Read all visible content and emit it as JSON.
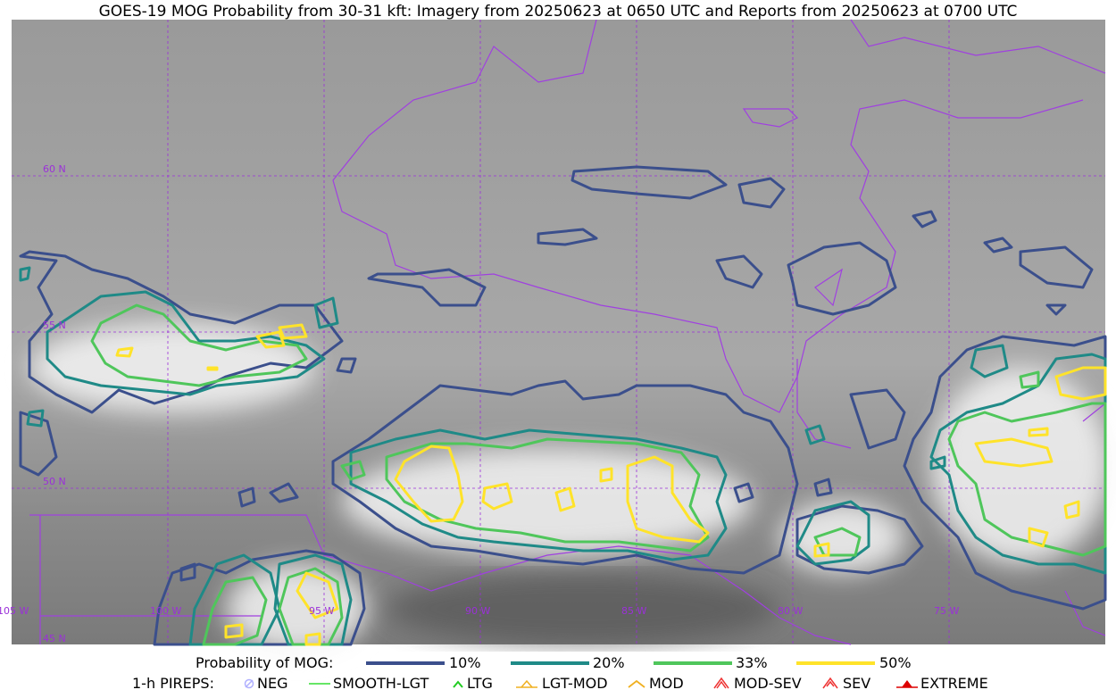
{
  "title": "GOES-19 MOG Probability from 30-31 kft: Imagery from 20250623 at 0650 UTC and Reports from 20250623 at 0700 UTC",
  "map": {
    "lat_labels": [
      "60 N",
      "55 N",
      "50 N",
      "45 N"
    ],
    "lon_labels": [
      "105 W",
      "100 W",
      "95 W",
      "90 W",
      "85 W",
      "80 W",
      "75 W"
    ],
    "grid_color": "#9b30d9",
    "border_color": "#a040e0"
  },
  "legend": {
    "prob_title": "Probability of MOG:",
    "levels": [
      {
        "label": "10%",
        "color": "#3b4f8c"
      },
      {
        "label": "20%",
        "color": "#1f8a87"
      },
      {
        "label": "33%",
        "color": "#4fc65b"
      },
      {
        "label": "50%",
        "color": "#ffe32a"
      }
    ],
    "pirep_title": "1-h PIREPS:",
    "pireps": [
      {
        "label": "NEG",
        "icon": "neg-icon",
        "color": "#b0b0ff"
      },
      {
        "label": "SMOOTH-LGT",
        "icon": "smooth-lgt-icon",
        "color": "#33dd33"
      },
      {
        "label": "LTG",
        "icon": "ltg-icon",
        "color": "#22cc22"
      },
      {
        "label": "LGT-MOD",
        "icon": "lgt-mod-icon",
        "color": "#f0b020"
      },
      {
        "label": "MOD",
        "icon": "mod-icon",
        "color": "#f0b020"
      },
      {
        "label": "MOD-SEV",
        "icon": "mod-sev-icon",
        "color": "#ee3333"
      },
      {
        "label": "SEV",
        "icon": "sev-icon",
        "color": "#ee3333"
      },
      {
        "label": "EXTREME",
        "icon": "extreme-icon",
        "color": "#dd0000"
      }
    ]
  }
}
